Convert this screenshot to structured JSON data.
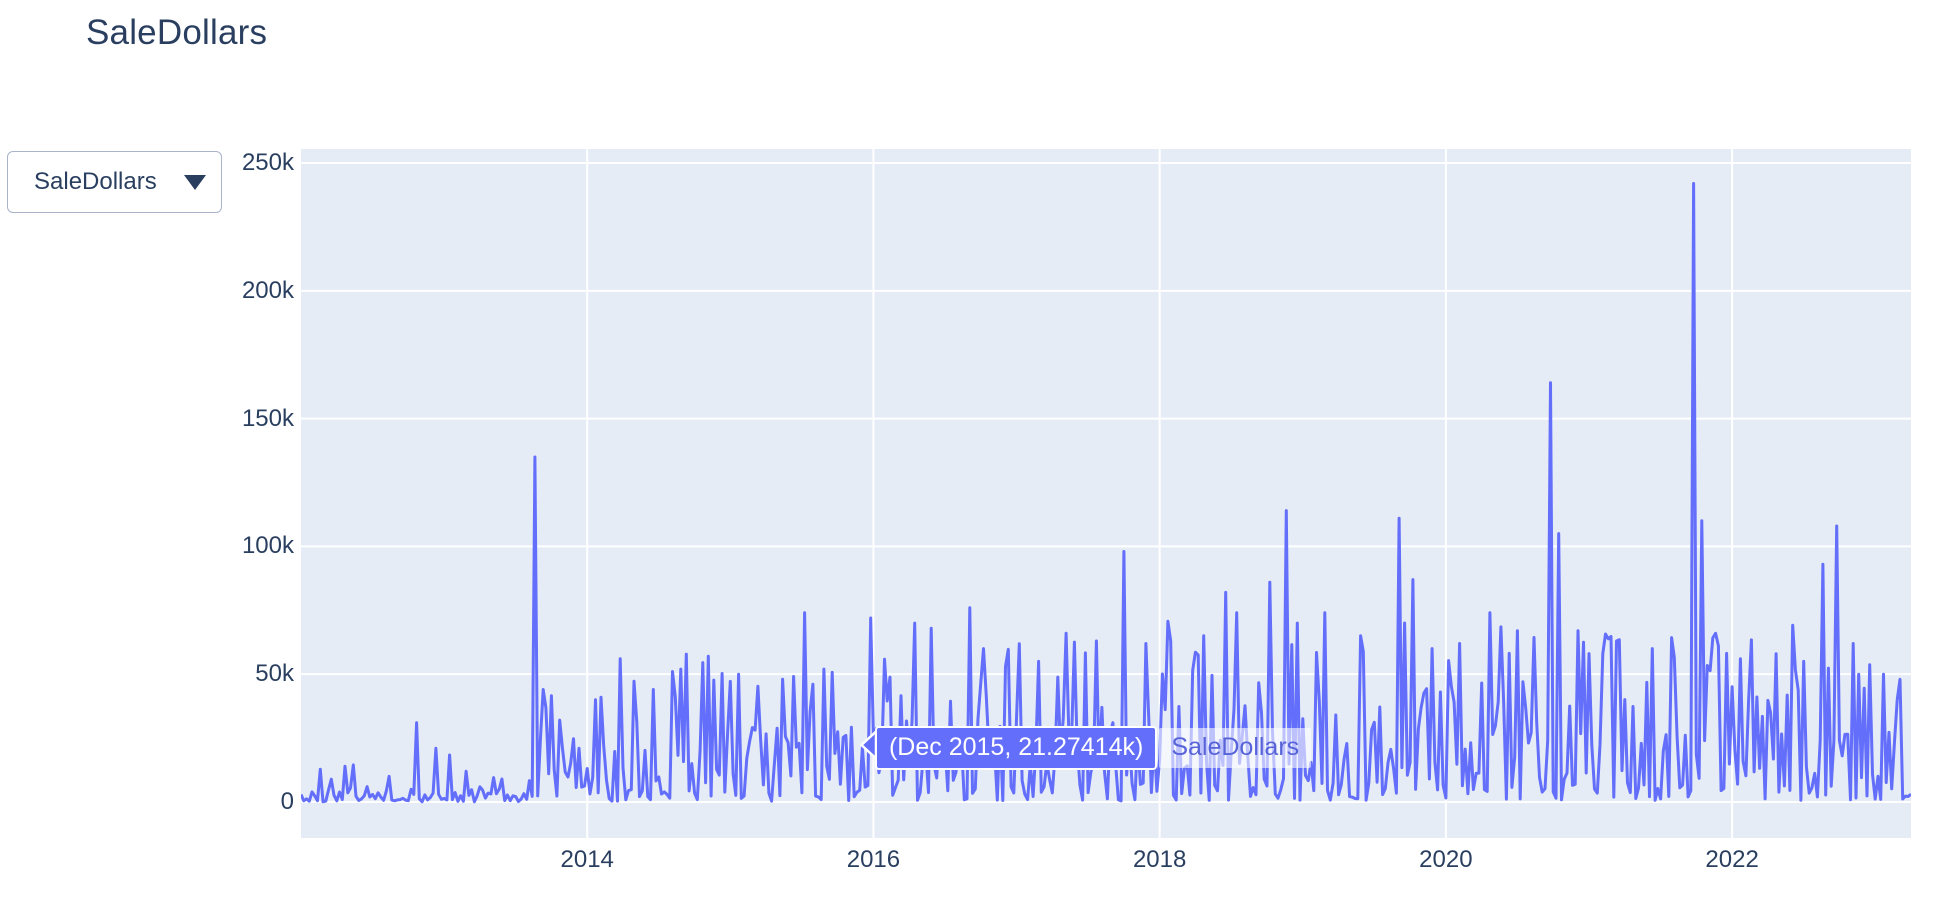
{
  "header": {
    "title": "SaleDollars"
  },
  "dropdown": {
    "value": "SaleDollars",
    "caret_icon": "chevron-down"
  },
  "colors": {
    "line": "#636efa",
    "plot_bg": "#e5ecf6",
    "grid": "#ffffff",
    "text": "#2a3f5f",
    "hover_bg": "#636efa",
    "hover_text": "#ffffff",
    "hover_name_text": "#5763d8"
  },
  "chart_data": {
    "type": "line",
    "title": "SaleDollars",
    "series_name": "SaleDollars",
    "xlabel": "",
    "ylabel": "",
    "legend_position": "none",
    "grid": true,
    "x_range_years": [
      2012.0,
      2023.25
    ],
    "ylim_k": [
      -14.1,
      255.5
    ],
    "points_per_year": 52,
    "seed": 42,
    "x_ticks": [
      {
        "year": 2014,
        "label": "2014"
      },
      {
        "year": 2016,
        "label": "2016"
      },
      {
        "year": 2018,
        "label": "2018"
      },
      {
        "year": 2020,
        "label": "2020"
      },
      {
        "year": 2022,
        "label": "2022"
      }
    ],
    "y_ticks": [
      {
        "value_k": 0,
        "label": "0"
      },
      {
        "value_k": 50,
        "label": "50k"
      },
      {
        "value_k": 100,
        "label": "100k"
      },
      {
        "value_k": 150,
        "label": "150k"
      },
      {
        "value_k": 200,
        "label": "200k"
      },
      {
        "value_k": 250,
        "label": "250k"
      }
    ],
    "eras": [
      {
        "start": 2012.0,
        "end": 2013.56,
        "base_lo_k": 0.5,
        "base_hi_k": 6,
        "spike_p": 0.05,
        "spike_lo_k": 8,
        "spike_hi_k": 26
      },
      {
        "start": 2013.56,
        "end": 2013.82,
        "base_lo_k": 8,
        "base_hi_k": 34,
        "spike_p": 0.25,
        "spike_lo_k": 36,
        "spike_hi_k": 50
      },
      {
        "start": 2013.82,
        "end": 2014.6,
        "base_lo_k": 2,
        "base_hi_k": 26,
        "spike_p": 0.12,
        "spike_lo_k": 30,
        "spike_hi_k": 52
      },
      {
        "start": 2014.6,
        "end": 2016.0,
        "base_lo_k": 2,
        "base_hi_k": 30,
        "spike_p": 0.14,
        "spike_lo_k": 33,
        "spike_hi_k": 58
      },
      {
        "start": 2016.0,
        "end": 2017.55,
        "base_lo_k": 3,
        "base_hi_k": 34,
        "spike_p": 0.16,
        "spike_lo_k": 36,
        "spike_hi_k": 64
      },
      {
        "start": 2017.55,
        "end": 2019.0,
        "base_lo_k": 3,
        "base_hi_k": 38,
        "spike_p": 0.17,
        "spike_lo_k": 40,
        "spike_hi_k": 75
      },
      {
        "start": 2019.0,
        "end": 2020.6,
        "base_lo_k": 4,
        "base_hi_k": 41,
        "spike_p": 0.17,
        "spike_lo_k": 42,
        "spike_hi_k": 72
      },
      {
        "start": 2020.6,
        "end": 2021.68,
        "base_lo_k": 5,
        "base_hi_k": 44,
        "spike_p": 0.17,
        "spike_lo_k": 45,
        "spike_hi_k": 66
      },
      {
        "start": 2021.68,
        "end": 2023.25,
        "base_lo_k": 5,
        "base_hi_k": 46,
        "spike_p": 0.19,
        "spike_lo_k": 47,
        "spike_hi_k": 70
      }
    ],
    "peaks_k": [
      [
        2012.3,
        14
      ],
      [
        2012.62,
        10
      ],
      [
        2012.8,
        31
      ],
      [
        2012.95,
        21
      ],
      [
        2013.16,
        12
      ],
      [
        2013.4,
        9
      ],
      [
        2013.63,
        135
      ],
      [
        2013.7,
        44
      ],
      [
        2014.05,
        40
      ],
      [
        2014.23,
        56
      ],
      [
        2014.47,
        44
      ],
      [
        2014.65,
        52
      ],
      [
        2014.85,
        57
      ],
      [
        2015.05,
        50
      ],
      [
        2015.36,
        48
      ],
      [
        2015.52,
        74
      ],
      [
        2015.66,
        52
      ],
      [
        2015.92,
        21.27414
      ],
      [
        2015.98,
        72
      ],
      [
        2016.28,
        70
      ],
      [
        2016.4,
        68
      ],
      [
        2016.67,
        76
      ],
      [
        2016.77,
        60
      ],
      [
        2016.92,
        53
      ],
      [
        2017.15,
        55
      ],
      [
        2017.35,
        66
      ],
      [
        2017.55,
        63
      ],
      [
        2017.75,
        98
      ],
      [
        2017.9,
        62
      ],
      [
        2018.08,
        63
      ],
      [
        2018.3,
        65
      ],
      [
        2018.47,
        82
      ],
      [
        2018.53,
        74
      ],
      [
        2018.76,
        86
      ],
      [
        2018.88,
        114
      ],
      [
        2018.97,
        70
      ],
      [
        2019.15,
        74
      ],
      [
        2019.4,
        65
      ],
      [
        2019.68,
        111
      ],
      [
        2019.76,
        87
      ],
      [
        2019.9,
        60
      ],
      [
        2020.1,
        62
      ],
      [
        2020.3,
        74
      ],
      [
        2020.5,
        67
      ],
      [
        2020.73,
        164
      ],
      [
        2020.78,
        105
      ],
      [
        2020.92,
        67
      ],
      [
        2021.1,
        58
      ],
      [
        2021.2,
        63
      ],
      [
        2021.45,
        60
      ],
      [
        2021.74,
        242
      ],
      [
        2021.78,
        110
      ],
      [
        2021.88,
        66
      ],
      [
        2022.05,
        56
      ],
      [
        2022.3,
        58
      ],
      [
        2022.5,
        55
      ],
      [
        2022.64,
        93
      ],
      [
        2022.74,
        108
      ],
      [
        2022.85,
        62
      ],
      [
        2023.05,
        50
      ],
      [
        2023.18,
        48
      ]
    ],
    "hover_point": {
      "x_label": "Dec 2015",
      "year": 2015.92,
      "value_k": 21.27414,
      "text": "(Dec 2015, 21.27414k)"
    }
  }
}
